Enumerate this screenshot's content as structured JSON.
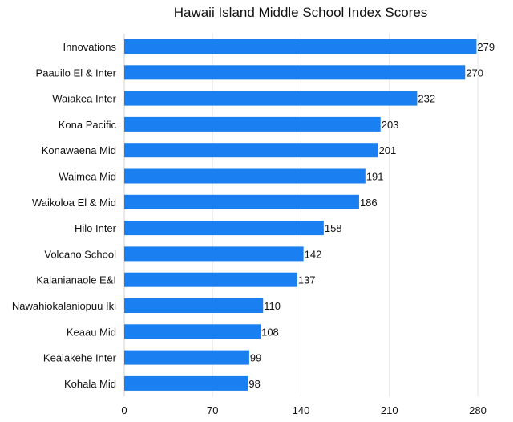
{
  "chart_data": {
    "type": "bar",
    "orientation": "horizontal",
    "title": "Hawaii Island Middle School Index Scores",
    "xlabel": "",
    "ylabel": "",
    "categories": [
      "Innovations",
      "Paauilo El & Inter",
      "Waiakea Inter",
      "Kona Pacific",
      "Konawaena Mid",
      "Waimea Mid",
      "Waikoloa El & Mid",
      "Hilo Inter",
      "Volcano School",
      "Kalanianaole E&I",
      "Nawahiokalaniopuu Iki",
      "Keaau Mid",
      "Kealakehe Inter",
      "Kohala Mid"
    ],
    "values": [
      279,
      270,
      232,
      203,
      201,
      191,
      186,
      158,
      142,
      137,
      110,
      108,
      99,
      98
    ],
    "xlim": [
      0,
      280
    ],
    "x_ticks": [
      "0",
      "70",
      "140",
      "210",
      "280"
    ],
    "grid": "vertical",
    "bar_color": "#1a7ff0"
  }
}
